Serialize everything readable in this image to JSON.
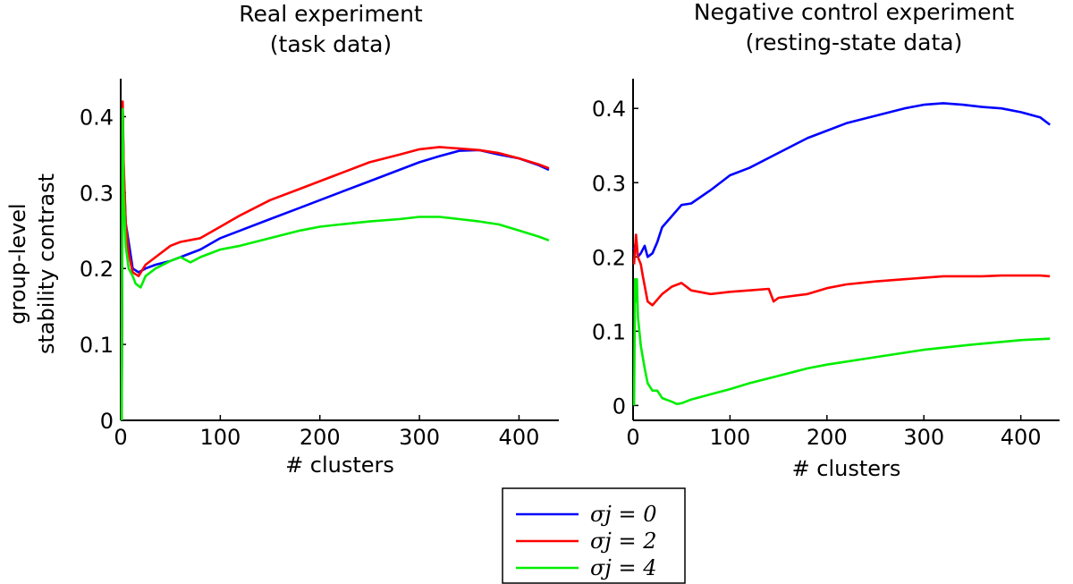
{
  "chart_data": [
    {
      "type": "line",
      "title": "Real experiment\n(task data)",
      "xlabel": "# clusters",
      "ylabel": "group-level\nstability contrast",
      "xlim": [
        0,
        440
      ],
      "ylim": [
        0,
        0.45
      ],
      "xticks": [
        "0",
        "100",
        "200",
        "300",
        "400"
      ],
      "yticks": [
        "0",
        "0.1",
        "0.2",
        "0.3",
        "0.4"
      ],
      "grid": false,
      "series": [
        {
          "name": "σj = 0",
          "color": "#0000ff",
          "x": [
            1,
            2,
            3,
            5,
            8,
            12,
            18,
            25,
            35,
            50,
            60,
            80,
            100,
            120,
            150,
            180,
            200,
            220,
            250,
            280,
            300,
            320,
            340,
            360,
            380,
            400,
            420,
            430
          ],
          "y": [
            0.0,
            0.41,
            0.33,
            0.26,
            0.235,
            0.2,
            0.195,
            0.2,
            0.205,
            0.21,
            0.215,
            0.225,
            0.24,
            0.25,
            0.265,
            0.28,
            0.29,
            0.3,
            0.315,
            0.33,
            0.34,
            0.348,
            0.355,
            0.356,
            0.35,
            0.345,
            0.336,
            0.33
          ]
        },
        {
          "name": "σj = 2",
          "color": "#ff0000",
          "x": [
            1,
            2,
            3,
            5,
            8,
            12,
            18,
            25,
            35,
            50,
            60,
            80,
            100,
            120,
            150,
            180,
            200,
            220,
            250,
            280,
            300,
            320,
            340,
            360,
            380,
            400,
            420,
            430
          ],
          "y": [
            0.0,
            0.42,
            0.34,
            0.26,
            0.22,
            0.195,
            0.19,
            0.205,
            0.215,
            0.23,
            0.235,
            0.24,
            0.255,
            0.27,
            0.29,
            0.305,
            0.315,
            0.325,
            0.34,
            0.35,
            0.357,
            0.36,
            0.358,
            0.356,
            0.352,
            0.345,
            0.337,
            0.332
          ]
        },
        {
          "name": "σj = 4",
          "color": "#00ee00",
          "x": [
            1,
            2,
            3,
            5,
            8,
            12,
            15,
            20,
            25,
            35,
            50,
            60,
            70,
            80,
            100,
            120,
            150,
            180,
            200,
            220,
            250,
            280,
            300,
            320,
            340,
            360,
            380,
            400,
            420,
            430
          ],
          "y": [
            0.0,
            0.41,
            0.3,
            0.23,
            0.2,
            0.19,
            0.18,
            0.175,
            0.19,
            0.2,
            0.21,
            0.215,
            0.208,
            0.215,
            0.225,
            0.23,
            0.24,
            0.25,
            0.255,
            0.258,
            0.262,
            0.265,
            0.268,
            0.268,
            0.265,
            0.262,
            0.258,
            0.25,
            0.242,
            0.237
          ]
        }
      ]
    },
    {
      "type": "line",
      "title": "Negative control experiment\n(resting-state data)",
      "xlabel": "# clusters",
      "ylabel": "",
      "xlim": [
        0,
        440
      ],
      "ylim": [
        -0.02,
        0.44
      ],
      "xticks": [
        "0",
        "100",
        "200",
        "300",
        "400"
      ],
      "yticks": [
        "0",
        "0.1",
        "0.2",
        "0.3",
        "0.4"
      ],
      "grid": false,
      "series": [
        {
          "name": "σj = 0",
          "color": "#0000ff",
          "x": [
            1,
            3,
            5,
            8,
            12,
            15,
            20,
            25,
            30,
            40,
            50,
            60,
            80,
            100,
            120,
            150,
            180,
            200,
            220,
            250,
            280,
            300,
            320,
            340,
            360,
            380,
            400,
            420,
            430
          ],
          "y": [
            0.21,
            0.22,
            0.2,
            0.205,
            0.215,
            0.2,
            0.205,
            0.22,
            0.24,
            0.255,
            0.27,
            0.272,
            0.29,
            0.31,
            0.32,
            0.34,
            0.36,
            0.37,
            0.38,
            0.39,
            0.4,
            0.405,
            0.407,
            0.405,
            0.402,
            0.4,
            0.395,
            0.388,
            0.378
          ]
        },
        {
          "name": "σj = 2",
          "color": "#ff0000",
          "x": [
            1,
            3,
            5,
            8,
            10,
            15,
            20,
            30,
            40,
            50,
            60,
            80,
            100,
            120,
            140,
            145,
            150,
            180,
            200,
            220,
            250,
            280,
            300,
            320,
            340,
            360,
            380,
            400,
            420,
            430
          ],
          "y": [
            0.19,
            0.23,
            0.2,
            0.19,
            0.175,
            0.14,
            0.135,
            0.15,
            0.16,
            0.165,
            0.155,
            0.15,
            0.153,
            0.155,
            0.157,
            0.14,
            0.145,
            0.15,
            0.158,
            0.163,
            0.167,
            0.17,
            0.172,
            0.174,
            0.174,
            0.174,
            0.175,
            0.175,
            0.175,
            0.174
          ]
        },
        {
          "name": "σj = 4",
          "color": "#00ee00",
          "x": [
            1,
            2,
            3,
            4,
            5,
            8,
            12,
            15,
            20,
            25,
            30,
            40,
            45,
            50,
            60,
            80,
            100,
            120,
            150,
            180,
            200,
            250,
            300,
            350,
            400,
            430
          ],
          "y": [
            0.0,
            0.17,
            0.14,
            0.17,
            0.12,
            0.08,
            0.05,
            0.03,
            0.02,
            0.02,
            0.01,
            0.005,
            0.002,
            0.003,
            0.008,
            0.015,
            0.022,
            0.03,
            0.04,
            0.05,
            0.055,
            0.065,
            0.075,
            0.082,
            0.088,
            0.09
          ]
        }
      ]
    }
  ],
  "legend": {
    "placement": "bottom-center",
    "entries": [
      {
        "label": "σj = 0",
        "color": "#0000ff"
      },
      {
        "label": "σj = 2",
        "color": "#ff0000"
      },
      {
        "label": "σj = 4",
        "color": "#00ee00"
      }
    ]
  }
}
